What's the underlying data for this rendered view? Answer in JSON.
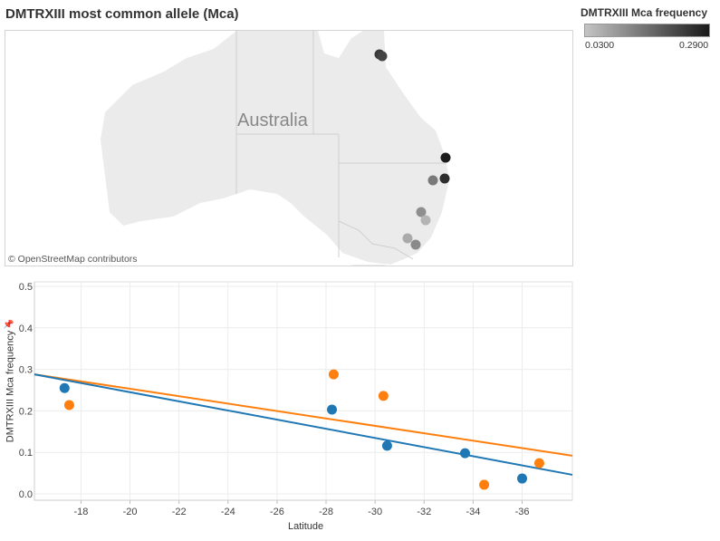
{
  "title": "DMTRXIII most common allele (Mca)",
  "map": {
    "label": "Australia",
    "attribution": "© OpenStreetMap contributors",
    "markers": [
      "#3a3a3a",
      "#444444",
      "#1c1c1c",
      "#2e2e2e",
      "#7a7a7a",
      "#8e8e8e",
      "#b4b4b4",
      "#aaaaaa",
      "#8a8a8a"
    ]
  },
  "legend": {
    "title": "DMTRXIII Mca frequency",
    "min": "0.0300",
    "max": "0.2900",
    "color_low": "#c4c4c4",
    "color_high": "#1a1a1a"
  },
  "chart_data": {
    "type": "scatter",
    "xlabel": "Latitude",
    "ylabel": "DMTRXIII Mca frequency",
    "xlim": [
      -16.1,
      -38.05
    ],
    "ylim": [
      0,
      0.5
    ],
    "xticks": [
      "-18",
      "-20",
      "-22",
      "-24",
      "-26",
      "-28",
      "-30",
      "-32",
      "-34",
      "-36"
    ],
    "yticks": [
      "0.0",
      "0.1",
      "0.2",
      "0.3",
      "0.4",
      "0.5"
    ],
    "grid": true,
    "series": [
      {
        "name": "blue",
        "color": "#1f77b4",
        "points": [
          [
            -17.33,
            0.255
          ],
          [
            -28.24,
            0.203
          ],
          [
            -30.49,
            0.116
          ],
          [
            -33.67,
            0.098
          ],
          [
            -36.0,
            0.037
          ]
        ],
        "trend": [
          [
            -16.1,
            0.288
          ],
          [
            -38.05,
            0.046
          ]
        ]
      },
      {
        "name": "orange",
        "color": "#ff7f0e",
        "points": [
          [
            -17.52,
            0.214
          ],
          [
            -28.31,
            0.288
          ],
          [
            -30.34,
            0.236
          ],
          [
            -34.45,
            0.022
          ],
          [
            -36.7,
            0.074
          ]
        ],
        "trend": [
          [
            -16.1,
            0.288
          ],
          [
            -38.05,
            0.092
          ]
        ]
      }
    ]
  }
}
